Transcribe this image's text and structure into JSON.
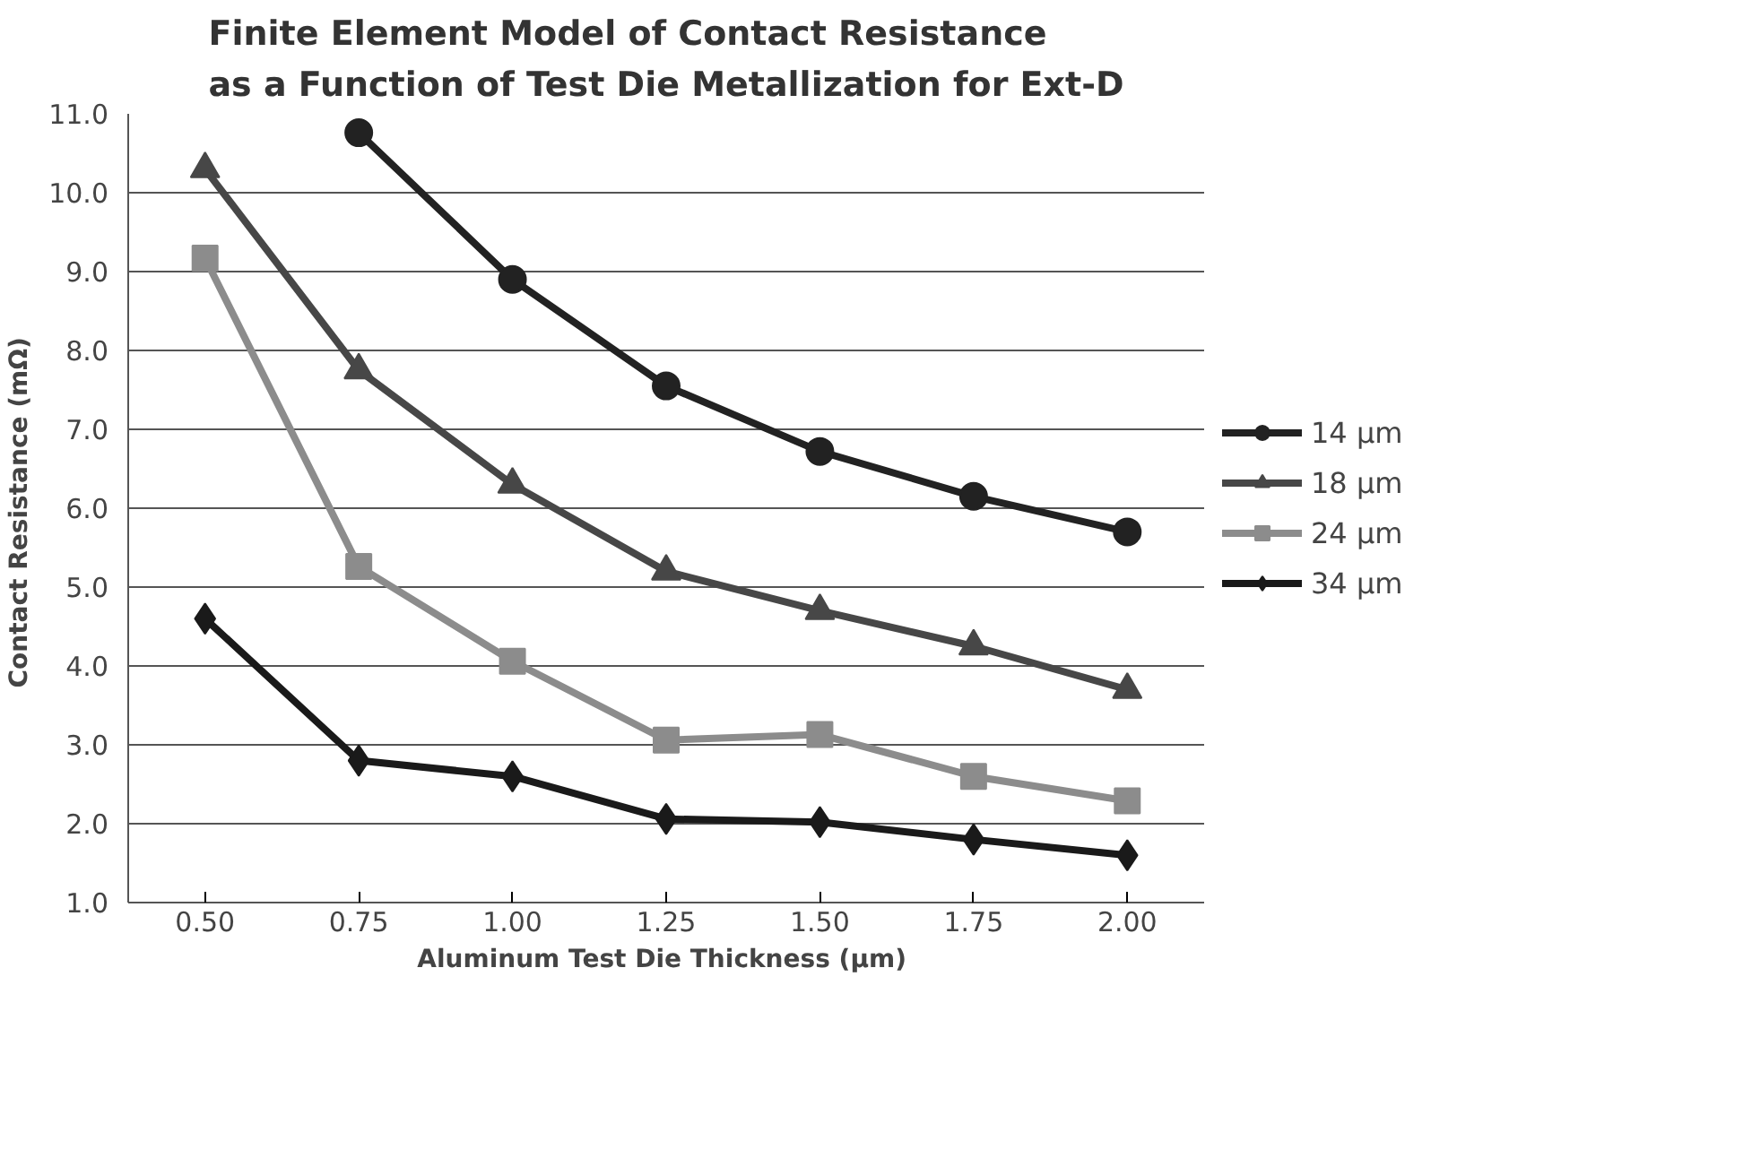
{
  "chart_data": {
    "type": "line",
    "title": "Finite Element Model of Contact Resistance\nas a Function of Test Die Metallization for Ext-D",
    "xlabel": "Aluminum Test Die Thickness  (µm)",
    "ylabel": "Contact Resistance  (mΩ)",
    "categories": [
      "0.50",
      "0.75",
      "1.00",
      "1.25",
      "1.50",
      "1.75",
      "2.00"
    ],
    "ylim": [
      1,
      11
    ],
    "yticks": [
      {
        "value": 1,
        "label": "1.0"
      },
      {
        "value": 2,
        "label": "2.0"
      },
      {
        "value": 3,
        "label": "3.0"
      },
      {
        "value": 4,
        "label": "4.0"
      },
      {
        "value": 5,
        "label": "5.0"
      },
      {
        "value": 6,
        "label": "6.0"
      },
      {
        "value": 7,
        "label": "7.0"
      },
      {
        "value": 8,
        "label": "8.0"
      },
      {
        "value": 9,
        "label": "9.0"
      },
      {
        "value": 10,
        "label": "10.0"
      },
      {
        "value": 11,
        "label": "11.0"
      }
    ],
    "grid": "y",
    "legend": "right",
    "line_style": "solid",
    "series": [
      {
        "name": "14 µm",
        "color": "#222222",
        "marker": "circle",
        "values": [
          null,
          10.76,
          8.9,
          7.55,
          6.72,
          6.15,
          5.7
        ]
      },
      {
        "name": "18 µm",
        "color": "#474747",
        "marker": "triangle",
        "values": [
          10.3,
          7.75,
          6.3,
          5.2,
          4.7,
          4.25,
          3.7
        ]
      },
      {
        "name": "24 µm",
        "color": "#8c8c8c",
        "marker": "square",
        "values": [
          9.17,
          5.26,
          4.06,
          3.06,
          3.13,
          2.6,
          2.29
        ]
      },
      {
        "name": "34 µm",
        "color": "#1a1a1a",
        "marker": "diamond",
        "values": [
          4.6,
          2.8,
          2.6,
          2.06,
          2.02,
          1.8,
          1.6
        ]
      }
    ]
  }
}
